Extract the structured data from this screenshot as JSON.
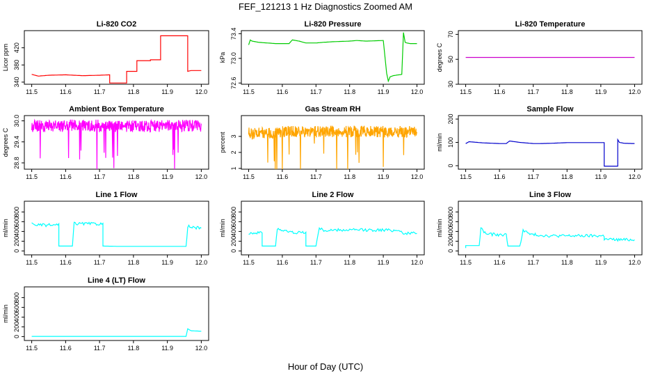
{
  "figure": {
    "title": "FEF_121213  1 Hz Diagnostics Zoomed AM",
    "xlabel": "Hour of Day (UTC)"
  },
  "chart_data": [
    {
      "type": "line",
      "title": "Li-820 CO2",
      "ylabel": "Licor ppm",
      "color": "#ff0000",
      "xlim": [
        11.5,
        12.0
      ],
      "ylim": [
        335,
        460
      ],
      "yticks": [
        340,
        380,
        420
      ],
      "xticks": [
        11.5,
        11.6,
        11.7,
        11.8,
        11.9,
        12.0
      ],
      "series": [
        {
          "x": [
            11.5,
            11.51,
            11.52,
            11.55,
            11.6,
            11.65,
            11.7,
            11.73,
            11.73,
            11.75,
            11.78,
            11.78,
            11.81,
            11.81,
            11.85,
            11.85,
            11.88,
            11.88,
            11.93,
            11.96,
            11.96,
            11.97,
            11.99,
            12.0
          ],
          "y": [
            358,
            356,
            354,
            356,
            357,
            355,
            356,
            357,
            338,
            338,
            338,
            365,
            365,
            390,
            390,
            392,
            392,
            448,
            448,
            448,
            365,
            367,
            367,
            367
          ]
        }
      ]
    },
    {
      "type": "line",
      "title": "Li-820 Pressure",
      "ylabel": "kPa",
      "color": "#00cc00",
      "xlim": [
        11.5,
        12.0
      ],
      "ylim": [
        72.58,
        73.45
      ],
      "yticks": [
        72.6,
        73.0,
        73.4
      ],
      "xticks": [
        11.5,
        11.6,
        11.7,
        11.8,
        11.9,
        12.0
      ],
      "series": [
        {
          "x": [
            11.5,
            11.505,
            11.51,
            11.53,
            11.58,
            11.6,
            11.62,
            11.63,
            11.65,
            11.67,
            11.7,
            11.72,
            11.75,
            11.8,
            11.82,
            11.85,
            11.9,
            11.91,
            11.915,
            11.92,
            11.93,
            11.955,
            11.96,
            11.965,
            11.97,
            11.98,
            12.0
          ],
          "y": [
            73.22,
            73.3,
            73.28,
            73.26,
            73.24,
            73.24,
            73.24,
            73.3,
            73.28,
            73.25,
            73.25,
            73.26,
            73.27,
            73.28,
            73.29,
            73.28,
            73.29,
            72.76,
            72.63,
            72.7,
            72.72,
            72.74,
            73.42,
            73.26,
            73.25,
            73.24,
            73.24
          ]
        }
      ]
    },
    {
      "type": "line",
      "title": "Li-820 Temperature",
      "ylabel": "degrees C",
      "color": "#cc00cc",
      "xlim": [
        11.5,
        12.0
      ],
      "ylim": [
        30,
        73
      ],
      "yticks": [
        30,
        50,
        70
      ],
      "xticks": [
        11.5,
        11.6,
        11.7,
        11.8,
        11.9,
        12.0
      ],
      "series": [
        {
          "x": [
            11.5,
            12.0
          ],
          "y": [
            51.5,
            51.5
          ]
        }
      ]
    },
    {
      "type": "line",
      "title": "Ambient Box Temperature",
      "ylabel": "degrees C",
      "color": "#ff00ff",
      "xlim": [
        11.5,
        12.0
      ],
      "ylim": [
        28.62,
        30.15
      ],
      "yticks": [
        28.8,
        29.4,
        30.0
      ],
      "xticks": [
        11.5,
        11.6,
        11.7,
        11.8,
        11.9,
        12.0
      ],
      "series": [
        {
          "x": [
            11.5,
            11.6,
            11.7,
            11.8,
            11.9,
            12.0
          ],
          "y": [
            29.85,
            29.87,
            29.84,
            29.85,
            29.86,
            29.86
          ]
        }
      ]
    },
    {
      "type": "line",
      "title": "Gas Stream RH",
      "ylabel": "percent",
      "color": "#ffa500",
      "xlim": [
        11.5,
        12.0
      ],
      "ylim": [
        0.95,
        4.3
      ],
      "yticks": [
        1.0,
        2.0,
        3.0
      ],
      "xticks": [
        11.5,
        11.6,
        11.7,
        11.8,
        11.9,
        12.0
      ],
      "series": [
        {
          "x": [
            11.5,
            11.6,
            11.7,
            11.8,
            11.9,
            12.0
          ],
          "y": [
            3.2,
            3.3,
            3.3,
            3.3,
            3.3,
            3.2
          ]
        }
      ]
    },
    {
      "type": "line",
      "title": "Sample Flow",
      "ylabel": "ml/min",
      "color": "#0000cc",
      "xlim": [
        11.5,
        12.0
      ],
      "ylim": [
        -15,
        215
      ],
      "yticks": [
        0,
        100,
        200
      ],
      "xticks": [
        11.5,
        11.6,
        11.7,
        11.8,
        11.9,
        12.0
      ],
      "series": [
        {
          "x": [
            11.5,
            11.51,
            11.55,
            11.6,
            11.62,
            11.63,
            11.66,
            11.7,
            11.72,
            11.75,
            11.8,
            11.82,
            11.85,
            11.9,
            11.91,
            11.91,
            11.95,
            11.95,
            11.955,
            11.97,
            12.0
          ],
          "y": [
            95,
            103,
            98,
            95,
            95,
            106,
            100,
            95,
            95,
            96,
            99,
            99,
            99,
            99,
            99,
            -2,
            -2,
            112,
            100,
            96,
            95
          ]
        }
      ]
    },
    {
      "type": "line",
      "title": "Line 1 Flow",
      "ylabel": "ml/min",
      "color": "#00ffff",
      "xlim": [
        11.5,
        12.0
      ],
      "ylim": [
        -80,
        1020
      ],
      "yticks": [
        0,
        200,
        400,
        600,
        800
      ],
      "xticks": [
        11.5,
        11.6,
        11.7,
        11.8,
        11.9,
        12.0
      ],
      "series": [
        {
          "x": [
            11.5,
            11.52,
            11.58,
            11.58,
            11.62,
            11.625,
            11.71,
            11.71,
            11.75,
            11.8,
            11.9,
            11.955,
            11.96,
            11.97,
            12.0
          ],
          "y": [
            560,
            530,
            530,
            100,
            100,
            560,
            555,
            100,
            95,
            95,
            95,
            95,
            510,
            480,
            470
          ]
        }
      ]
    },
    {
      "type": "line",
      "title": "Line 2 Flow",
      "ylabel": "ml/min",
      "color": "#00ffff",
      "xlim": [
        11.5,
        12.0
      ],
      "ylim": [
        -80,
        1020
      ],
      "yticks": [
        0,
        200,
        400,
        600,
        800
      ],
      "xticks": [
        11.5,
        11.6,
        11.7,
        11.8,
        11.9,
        12.0
      ],
      "series": [
        {
          "x": [
            11.5,
            11.54,
            11.54,
            11.58,
            11.585,
            11.6,
            11.63,
            11.67,
            11.67,
            11.7,
            11.71,
            11.72,
            11.8,
            11.9,
            11.95,
            11.96,
            11.98,
            12.0
          ],
          "y": [
            370,
            370,
            100,
            100,
            470,
            420,
            380,
            380,
            100,
            100,
            480,
            420,
            430,
            430,
            420,
            360,
            360,
            360
          ]
        }
      ]
    },
    {
      "type": "line",
      "title": "Line 3 Flow",
      "ylabel": "ml/min",
      "color": "#00ffff",
      "xlim": [
        11.5,
        12.0
      ],
      "ylim": [
        -80,
        1020
      ],
      "yticks": [
        0,
        200,
        400,
        600,
        800
      ],
      "xticks": [
        11.5,
        11.6,
        11.7,
        11.8,
        11.9,
        12.0
      ],
      "series": [
        {
          "x": [
            11.5,
            11.5,
            11.54,
            11.545,
            11.56,
            11.6,
            11.62,
            11.625,
            11.66,
            11.67,
            11.69,
            11.75,
            11.8,
            11.9,
            11.91,
            11.91,
            11.95,
            12.0
          ],
          "y": [
            60,
            110,
            110,
            470,
            350,
            330,
            330,
            100,
            100,
            430,
            340,
            310,
            310,
            310,
            310,
            240,
            230,
            230
          ]
        }
      ]
    },
    {
      "type": "line",
      "title": "Line 4 (LT) Flow",
      "ylabel": "ml/min",
      "color": "#00ffff",
      "xlim": [
        11.5,
        12.0
      ],
      "ylim": [
        -80,
        1020
      ],
      "yticks": [
        0,
        200,
        400,
        600,
        800
      ],
      "xticks": [
        11.5,
        11.6,
        11.7,
        11.8,
        11.9,
        12.0
      ],
      "series": [
        {
          "x": [
            11.5,
            11.6,
            11.7,
            11.8,
            11.9,
            11.955,
            11.96,
            11.97,
            12.0
          ],
          "y": [
            5,
            5,
            5,
            5,
            5,
            5,
            160,
            120,
            110
          ]
        }
      ]
    }
  ]
}
